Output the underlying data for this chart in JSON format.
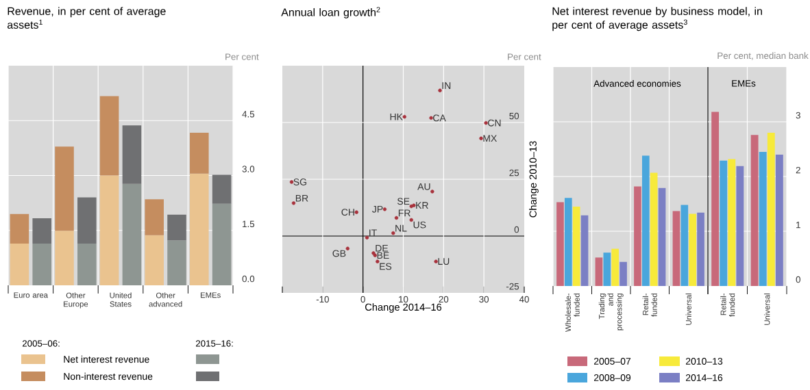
{
  "chart_data": [
    {
      "type": "bar",
      "title": "Revenue, in per cent of average assets$^{1}$",
      "subtitle": "Per cent",
      "categories": [
        "Euro area",
        null,
        "Other Europe",
        null,
        "United States",
        null,
        "Other advanced",
        null,
        "EMEs",
        null
      ],
      "ylim": [
        0,
        6
      ],
      "yticks": [
        {
          "value": 0,
          "label": "0.0"
        },
        1.5,
        {
          "value": 3,
          "label": "3.0"
        },
        4.5
      ],
      "grid": true,
      "legend": "bottom",
      "stacked": true,
      "annotations": [
        "2005–06:",
        "2015–16:"
      ],
      "series": [
        {
          "name": "Net interest revenue",
          "colors": [
            "#eac38f",
            "#8e9692",
            "#eac38f",
            "#8e9692",
            "#eac38f",
            "#8e9692",
            "#eac38f",
            "#8e9692",
            "#eac38f",
            "#8e9692"
          ],
          "values": [
            1.14,
            1.14,
            1.49,
            1.14,
            3.0,
            2.77,
            1.37,
            1.23,
            3.05,
            2.23
          ]
        },
        {
          "name": "Non-interest revenue",
          "colors": [
            "#c58d5f",
            "#6f7072",
            "#c58d5f",
            "#6f7072",
            "#c58d5f",
            "#6f7072",
            "#c58d5f",
            "#6f7072",
            "#c58d5f",
            "#6f7072"
          ],
          "values": [
            0.81,
            0.69,
            2.3,
            1.26,
            2.17,
            1.6,
            0.98,
            0.7,
            1.12,
            0.79
          ]
        }
      ]
    },
    {
      "type": "scatter",
      "title": "Annual loan growth$^{2}$",
      "subtitle": "Per cent",
      "xlabel": "Change 2014–16",
      "ylabel": "Change 2010–13",
      "xlim": [
        -20,
        40
      ],
      "xticks": [
        {
          "value": -20,
          "label": null
        },
        -10,
        0,
        10,
        20,
        30,
        40
      ],
      "ylim": [
        -25,
        75
      ],
      "yticks": [
        -25,
        0,
        25,
        50
      ],
      "grid": true,
      "marker": "circle",
      "color": "#a8323c",
      "x": [
        19.1,
        10.3,
        16.9,
        30.5,
        29.3,
        -17.7,
        -17.2,
        17.2,
        -1.6,
        5.4,
        12.0,
        12.6,
        8.3,
        12.0,
        7.5,
        1.0,
        2.6,
        3.0,
        3.6,
        -3.8,
        18.1
      ],
      "values": [
        64.1,
        52.5,
        52.0,
        49.8,
        43.0,
        23.8,
        14.5,
        19.6,
        10.5,
        11.8,
        13.1,
        13.5,
        8.0,
        7.1,
        1.3,
        -0.7,
        -7.5,
        -8.5,
        -11.2,
        -5.5,
        -11.2
      ],
      "annotations": [
        {
          "text": "IN",
          "x": 19.1,
          "y": 64.1
        },
        {
          "text": "HK",
          "x": 10.3,
          "y": 52.5
        },
        {
          "text": "CA",
          "x": 16.9,
          "y": 52.0
        },
        {
          "text": "CN",
          "x": 30.5,
          "y": 49.8
        },
        {
          "text": "MX",
          "x": 29.3,
          "y": 43.0
        },
        {
          "text": "SG",
          "x": -17.7,
          "y": 23.8
        },
        {
          "text": "BR",
          "x": -17.2,
          "y": 14.5
        },
        {
          "text": "AU",
          "x": 17.2,
          "y": 19.6
        },
        {
          "text": "CH",
          "x": -1.6,
          "y": 10.5
        },
        {
          "text": "JP",
          "x": 5.4,
          "y": 11.8
        },
        {
          "text": "SE",
          "x": 12.0,
          "y": 13.1
        },
        {
          "text": "KR",
          "x": 12.6,
          "y": 13.5
        },
        {
          "text": "FR",
          "x": 8.3,
          "y": 8.0
        },
        {
          "text": "US",
          "x": 12.0,
          "y": 7.1
        },
        {
          "text": "NL",
          "x": 7.5,
          "y": 1.3
        },
        {
          "text": "IT",
          "x": 1.0,
          "y": -0.7
        },
        {
          "text": "DE",
          "x": 2.6,
          "y": -7.5
        },
        {
          "text": "BE",
          "x": 3.0,
          "y": -8.5
        },
        {
          "text": "ES",
          "x": 3.6,
          "y": -11.2
        },
        {
          "text": "GB",
          "x": -3.8,
          "y": -5.5
        },
        {
          "text": "LU",
          "x": 18.1,
          "y": -11.2
        }
      ]
    },
    {
      "type": "bar",
      "title": "Net interest revenue by business model, in per cent of average assets$^{3}$",
      "categories": [
        "Wholesale-funded",
        "Trading and processing",
        "Retail-funded",
        "Universal"
      ],
      "ylim": [
        0,
        4
      ],
      "yticks": [
        0,
        1,
        2,
        3
      ],
      "tick_labels": "x",
      "grid": true,
      "legend": "bottom",
      "annotations": [
        "Advanced economies"
      ],
      "series": [
        {
          "name": "2005–07",
          "color": "#c8697a",
          "values": [
            1.53,
            0.52,
            1.82,
            1.37
          ]
        },
        {
          "name": "2008–09",
          "color": "#4aa6dc",
          "values": [
            1.61,
            0.61,
            2.38,
            1.48
          ]
        },
        {
          "name": "2010–13",
          "color": "#f7ea3b",
          "values": [
            1.45,
            0.68,
            2.07,
            1.32
          ]
        },
        {
          "name": "2014–16",
          "color": "#7b7fc4",
          "values": [
            1.29,
            0.44,
            1.79,
            1.34
          ]
        }
      ]
    },
    {
      "type": "bar",
      "subtitle": "Per cent, median bank",
      "categories": [
        "Retail-funded",
        "Universal"
      ],
      "ylim": [
        0,
        4
      ],
      "yticks": [
        0,
        1,
        2,
        3
      ],
      "grid": true,
      "annotations": [
        "EMEs"
      ],
      "series": [
        {
          "color": "#c8697a",
          "values": [
            3.18,
            2.76
          ]
        },
        {
          "color": "#4aa6dc",
          "values": [
            2.29,
            2.45
          ]
        },
        {
          "color": "#f7ea3b",
          "values": [
            2.32,
            2.8
          ]
        },
        {
          "color": "#7b7fc4",
          "values": [
            2.19,
            2.4
          ]
        }
      ]
    }
  ]
}
